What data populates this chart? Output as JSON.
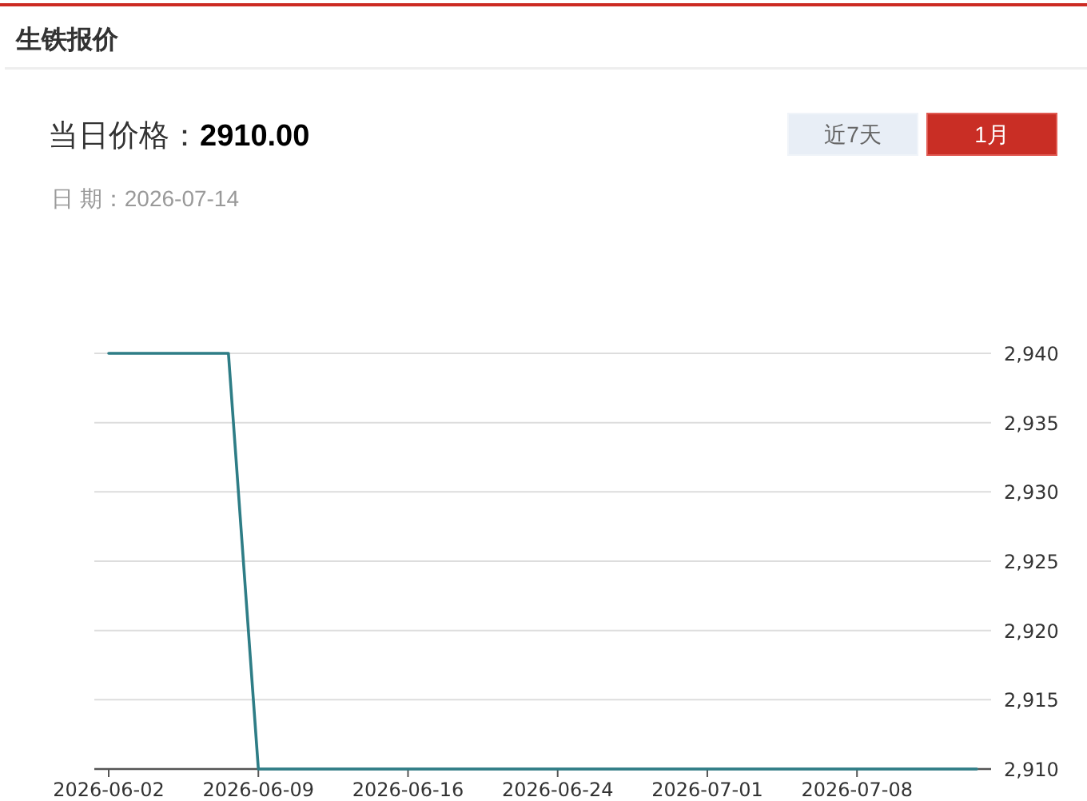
{
  "chart_data": {
    "type": "line",
    "title": "生铁报价",
    "subtitle": "当日价格：**2910.00**",
    "annotations": [
      "日 期：2026-07-14",
      "近7天",
      "1月"
    ],
    "categories": [
      "2026-06-02",
      null,
      null,
      null,
      null,
      "2026-06-09",
      null,
      null,
      null,
      null,
      "2026-06-16",
      null,
      null,
      null,
      null,
      "2026-06-24",
      null,
      null,
      null,
      null,
      "2026-07-01",
      null,
      null,
      null,
      null,
      "2026-07-08",
      null,
      null,
      null,
      null
    ],
    "series": [
      {
        "color": "#2e7d86",
        "values": [
          2940,
          2940,
          2940,
          2940,
          2940,
          2910,
          2910,
          2910,
          2910,
          2910,
          2910,
          2910,
          2910,
          2910,
          2910,
          2910,
          2910,
          2910,
          2910,
          2910,
          2910,
          2910,
          2910,
          2910,
          2910,
          2910,
          2910,
          2910,
          2910,
          2910
        ]
      }
    ],
    "ylim": [
      2910,
      2940
    ],
    "yticks": [
      {
        "value": 2910,
        "label": "2,910"
      },
      {
        "value": 2915,
        "label": "2,915"
      },
      {
        "value": 2920,
        "label": "2,920"
      },
      {
        "value": 2925,
        "label": "2,925"
      },
      {
        "value": 2930,
        "label": "2,930"
      },
      {
        "value": 2935,
        "label": "2,935"
      },
      {
        "value": 2940,
        "label": "2,940"
      }
    ],
    "grid": "y",
    "marker": "none",
    "line_style": "solid"
  }
}
